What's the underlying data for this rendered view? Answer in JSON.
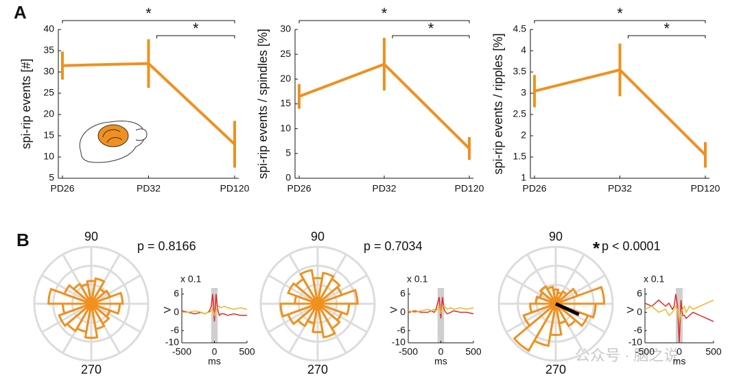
{
  "panel_labels": [
    "A",
    "B"
  ],
  "watermark": "公众号 · 脑之说",
  "chart_data": [
    {
      "type": "line",
      "ylabel": "spi-rip events [#]",
      "categories": [
        "PD26",
        "PD32",
        "PD120"
      ],
      "values": [
        31.5,
        32,
        13
      ],
      "errors": [
        3.3,
        5.7,
        5.5
      ],
      "color": "#f0901e",
      "ylim": [
        5,
        40
      ],
      "yticks": [
        5,
        10,
        15,
        20,
        25,
        30,
        35,
        40
      ],
      "brackets": [
        {
          "pair": [
            0,
            2
          ],
          "label": "*"
        },
        {
          "pair": [
            1,
            2
          ],
          "label": "*"
        }
      ]
    },
    {
      "type": "line",
      "ylabel": "spi-rip events / spindles [%]",
      "categories": [
        "PD26",
        "PD32",
        "PD120"
      ],
      "values": [
        16.5,
        23,
        6
      ],
      "errors": [
        2.5,
        5.3,
        2.3
      ],
      "color": "#f0901e",
      "ylim": [
        0,
        30
      ],
      "yticks": [
        0,
        5,
        10,
        15,
        20,
        25,
        30
      ],
      "brackets": [
        {
          "pair": [
            0,
            2
          ],
          "label": "*"
        },
        {
          "pair": [
            1,
            2
          ],
          "label": "*"
        }
      ]
    },
    {
      "type": "line",
      "ylabel": "spi-rip events / ripples [%]",
      "categories": [
        "PD26",
        "PD32",
        "PD120"
      ],
      "values": [
        3.05,
        3.55,
        1.55
      ],
      "errors": [
        0.38,
        0.62,
        0.3
      ],
      "color": "#f0901e",
      "ylim": [
        1,
        4.5
      ],
      "yticks": [
        1,
        1.5,
        2,
        2.5,
        3,
        3.5,
        4,
        4.5
      ],
      "brackets": [
        {
          "pair": [
            0,
            2
          ],
          "label": "*"
        },
        {
          "pair": [
            1,
            2
          ],
          "label": "*"
        }
      ]
    },
    {
      "type": "polar",
      "annotation": "p = 0.8166",
      "angle_ticks": [
        90,
        270
      ],
      "color": "#f0901e",
      "rlim": [
        0,
        1
      ],
      "values": [
        0.55,
        0.35,
        0.3,
        0.45,
        0.4,
        0.35,
        0.4,
        0.5,
        0.75,
        0.5,
        0.6,
        0.55,
        0.5,
        0.6,
        0.45,
        0.4,
        0.35,
        0.5
      ]
    },
    {
      "type": "polar",
      "annotation": "p = 0.7034",
      "angle_ticks": [
        90,
        270
      ],
      "color": "#f0901e",
      "rlim": [
        0,
        1
      ],
      "values": [
        0.7,
        0.45,
        0.5,
        0.55,
        0.45,
        0.6,
        0.5,
        0.55,
        0.4,
        0.65,
        0.55,
        0.45,
        0.35,
        0.5,
        0.6,
        0.5,
        0.45,
        0.55
      ]
    },
    {
      "type": "polar",
      "annotation": "p < 0.0001",
      "annotation_mark": "*",
      "angle_ticks": [
        90,
        270
      ],
      "color": "#f0901e",
      "rlim": [
        0,
        1
      ],
      "values": [
        0.85,
        0.4,
        0.25,
        0.2,
        0.25,
        0.3,
        0.35,
        0.3,
        0.35,
        0.45,
        0.6,
        0.95,
        0.75,
        0.55,
        0.35,
        0.45,
        0.6,
        0.7
      ],
      "mean_vector": {
        "angle": 335,
        "length": 0.45,
        "color": "#000000"
      }
    },
    {
      "type": "line",
      "scale_label": "x 0.1",
      "ylabel": "V",
      "xlabel": "ms",
      "x": [
        -500,
        -400,
        -300,
        -200,
        -150,
        -100,
        -75,
        -50,
        -25,
        0,
        25,
        50,
        75,
        100,
        150,
        200,
        300,
        400,
        500
      ],
      "series": [
        {
          "color": "#e0282a",
          "values": [
            0.5,
            0,
            -0.5,
            0,
            -0.5,
            0,
            0.5,
            2,
            6,
            -3,
            6,
            1,
            -1,
            -0.5,
            -0.5,
            -1,
            -0.5,
            -1,
            -1
          ]
        },
        {
          "color": "#e8b820",
          "values": [
            0,
            0,
            0.5,
            0,
            -0.5,
            0,
            0,
            0.5,
            1,
            -1,
            1,
            1.5,
            2,
            1.5,
            2,
            1.5,
            1,
            1.5,
            1
          ]
        }
      ],
      "shade": [
        -50,
        50
      ],
      "xlim": [
        -500,
        500
      ],
      "xticks": [
        -500,
        0,
        500
      ],
      "ylim": [
        -10,
        8
      ],
      "yticks": [
        6,
        0,
        -6,
        -10
      ]
    },
    {
      "type": "line",
      "scale_label": "x 0.1",
      "ylabel": "V",
      "xlabel": "ms",
      "x": [
        -500,
        -400,
        -300,
        -200,
        -150,
        -100,
        -75,
        -50,
        -25,
        0,
        25,
        50,
        75,
        100,
        150,
        200,
        300,
        400,
        500
      ],
      "series": [
        {
          "color": "#e0282a",
          "values": [
            0,
            0.5,
            0,
            0,
            0.5,
            0,
            1,
            3,
            5,
            -2,
            5,
            1,
            0,
            -0.5,
            0,
            0.5,
            0,
            0,
            -0.5
          ]
        },
        {
          "color": "#e8b820",
          "values": [
            0.5,
            0,
            0.5,
            1,
            0.5,
            1,
            0.5,
            1,
            2,
            -0.5,
            2,
            2,
            1.5,
            1,
            1.5,
            1,
            1.5,
            1,
            1.5
          ]
        }
      ],
      "shade": [
        -50,
        50
      ],
      "xlim": [
        -500,
        500
      ],
      "xticks": [
        -500,
        0,
        500
      ],
      "ylim": [
        -10,
        8
      ],
      "yticks": [
        6,
        0,
        -6,
        -10
      ]
    },
    {
      "type": "line",
      "scale_label": "x 0.1",
      "ylabel": "V",
      "xlabel": "ms",
      "x": [
        -500,
        -400,
        -300,
        -200,
        -150,
        -100,
        -75,
        -50,
        -25,
        0,
        25,
        50,
        75,
        100,
        150,
        200,
        300,
        400,
        500
      ],
      "series": [
        {
          "color": "#e0282a",
          "values": [
            3,
            2,
            4,
            2,
            3,
            1,
            2,
            6,
            2,
            -10,
            4,
            -1,
            -1,
            -2,
            -1,
            0,
            -1,
            -2,
            -3
          ]
        },
        {
          "color": "#e8b820",
          "values": [
            1,
            2,
            0,
            1,
            -1,
            0,
            1,
            2,
            1,
            -3,
            0,
            1,
            2,
            0,
            2,
            1,
            2,
            3,
            4
          ]
        }
      ],
      "shade": [
        -50,
        50
      ],
      "xlim": [
        -500,
        500
      ],
      "xticks": [
        -500,
        0,
        500
      ],
      "ylim": [
        -10,
        8
      ],
      "yticks": [
        6,
        0,
        -6,
        -10
      ]
    }
  ]
}
